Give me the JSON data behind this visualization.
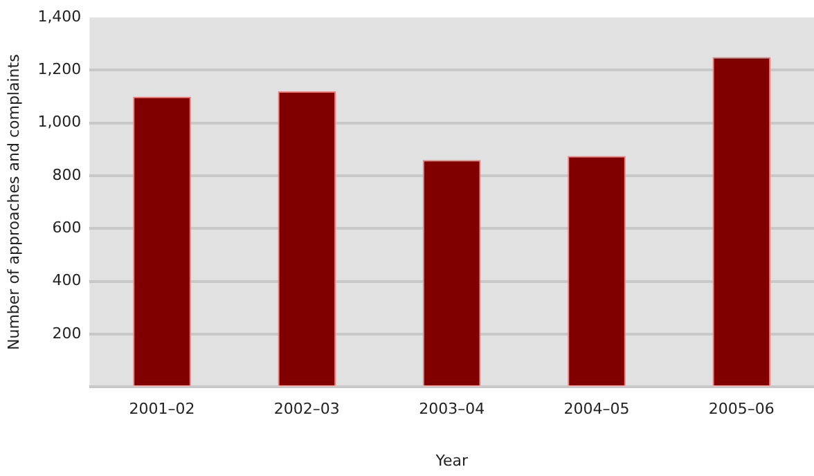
{
  "chart_data": {
    "type": "bar",
    "xlabel": "Year",
    "ylabel": "Number of approaches and complaints",
    "categories": [
      "2001–02",
      "2002–03",
      "2003–04",
      "2004–05",
      "2005–06"
    ],
    "values": [
      1100,
      1120,
      860,
      875,
      1250
    ],
    "color": "#800000",
    "ylim": [
      0,
      1400
    ],
    "yticks": [
      {
        "value": 0,
        "label": null
      },
      200,
      400,
      600,
      800,
      {
        "value": 1000,
        "label": "1,000"
      },
      {
        "value": 1200,
        "label": "1,200"
      },
      {
        "value": 1400,
        "label": "1,400"
      }
    ],
    "grid": "y"
  }
}
